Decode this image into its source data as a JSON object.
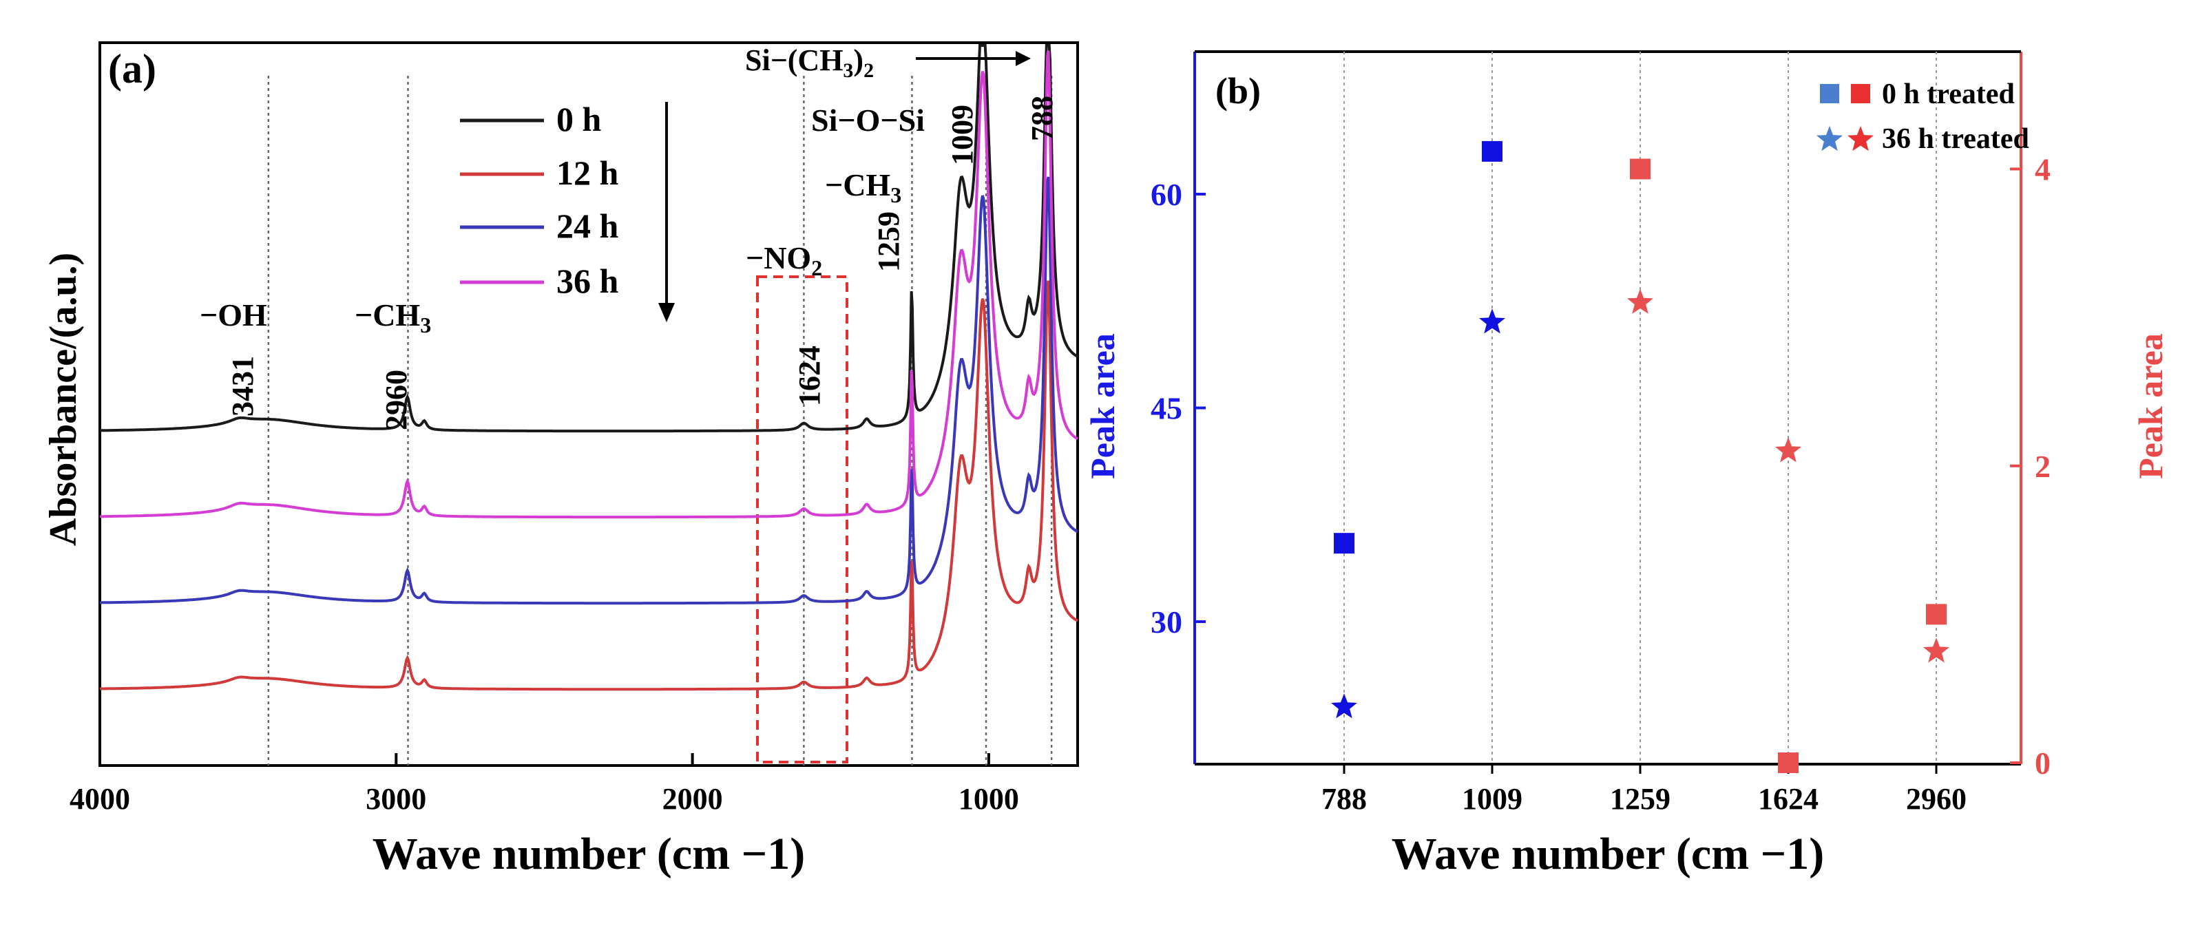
{
  "chart_data": [
    {
      "panel": "(a)",
      "type": "line",
      "title": "",
      "xlabel": "Wave number (cm −1)",
      "ylabel": "Absorbance/(a.u.)",
      "xlim": [
        4000,
        700
      ],
      "x_ticks": [
        4000,
        3000,
        2000,
        1000
      ],
      "x_ticklabels": [
        "4000",
        "3000",
        "2000",
        "1000"
      ],
      "legend": [
        "0 h",
        "12 h",
        "24 h",
        "36 h"
      ],
      "legend_position": "top-center",
      "series": [
        {
          "name": "0 h",
          "color": "#1a1a1a",
          "offset": 3.0,
          "scale": 1.0
        },
        {
          "name": "12 h",
          "color": "#d03a3a",
          "offset": 0.0,
          "scale": 0.92
        },
        {
          "name": "24 h",
          "color": "#3838b8",
          "offset": 1.0,
          "scale": 0.96
        },
        {
          "name": "36 h",
          "color": "#d43cd4",
          "offset": 2.0,
          "scale": 1.05
        }
      ],
      "peaks_cm": [
        3431,
        2960,
        1624,
        1259,
        1009,
        788
      ],
      "annotations": {
        "oh_group": "−OH",
        "ch3_group": "−CH",
        "ch3_sub": "3",
        "no2_group": "−NO",
        "no2_sub": "2",
        "ch3_group_b": "−CH",
        "ch3_sub_b": "3",
        "sioSi_group": "Si−O−Si",
        "sich3_group_a": "Si−(CH",
        "sich3_sub": "3",
        "sich3_group_b": ")",
        "sich3_sub2": "2",
        "p3431": "3431",
        "p2960": "2960",
        "p1624": "1624",
        "p1259": "1259",
        "p1009": "1009",
        "p788": "788"
      }
    },
    {
      "panel": "(b)",
      "type": "scatter",
      "title": "",
      "xlabel": "Wave number (cm −1)",
      "ylabel_left": "Peak area",
      "ylabel_right": "Peak area",
      "categories": [
        "788",
        "1009",
        "1259",
        "1624",
        "2960"
      ],
      "ylim_left": [
        20,
        70
      ],
      "yticks_left": [
        30,
        45,
        60
      ],
      "ylim_right": [
        0,
        4.8
      ],
      "yticks_right": [
        0,
        2,
        4
      ],
      "left_color": "#1a1ae6",
      "right_color": "#e84a4a",
      "legend": [
        "0 h treated",
        "36 h treated"
      ],
      "legend_position": "top-right",
      "series": [
        {
          "name": "0 h treated",
          "axis": "left",
          "marker": "square",
          "category": "788",
          "value": 35.5
        },
        {
          "name": "0 h treated",
          "axis": "left",
          "marker": "square",
          "category": "1009",
          "value": 63.0
        },
        {
          "name": "36 h treated",
          "axis": "left",
          "marker": "star",
          "category": "788",
          "value": 24.0
        },
        {
          "name": "36 h treated",
          "axis": "left",
          "marker": "star",
          "category": "1009",
          "value": 51.0
        },
        {
          "name": "0 h treated",
          "axis": "right",
          "marker": "square",
          "category": "1259",
          "value": 4.0
        },
        {
          "name": "0 h treated",
          "axis": "right",
          "marker": "square",
          "category": "1624",
          "value": 0.0
        },
        {
          "name": "0 h treated",
          "axis": "right",
          "marker": "square",
          "category": "2960",
          "value": 1.0
        },
        {
          "name": "36 h treated",
          "axis": "right",
          "marker": "star",
          "category": "1259",
          "value": 3.1
        },
        {
          "name": "36 h treated",
          "axis": "right",
          "marker": "star",
          "category": "1624",
          "value": 2.1
        },
        {
          "name": "36 h treated",
          "axis": "right",
          "marker": "star",
          "category": "2960",
          "value": 0.75
        }
      ]
    }
  ]
}
